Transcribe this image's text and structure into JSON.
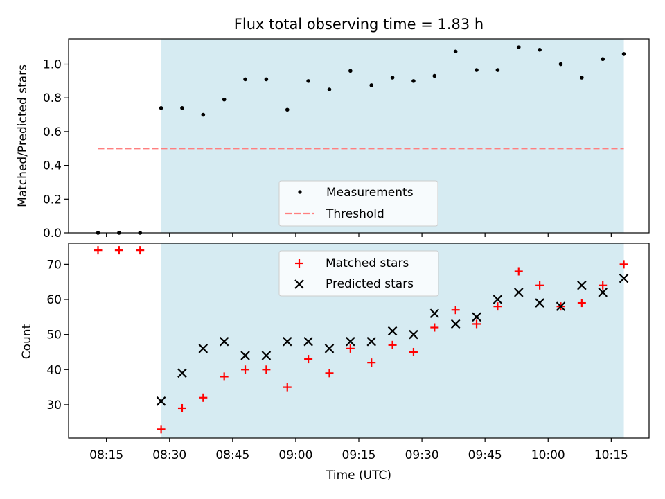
{
  "colors": {
    "shade": "#add8e6",
    "measurement": "#000000",
    "threshold": "#ff7f7f",
    "matched": "#ff0000",
    "predicted": "#000000"
  },
  "chart_data": [
    {
      "type": "scatter",
      "title": "Flux total observing time = 1.83 h",
      "xlabel": "",
      "ylabel": "Matched/Predicted stars",
      "ylim": [
        0,
        1.15
      ],
      "yticks": [
        "0.0",
        "0.2",
        "0.4",
        "0.6",
        "0.8",
        "1.0"
      ],
      "ytick_values": [
        0,
        0.2,
        0.4,
        0.6,
        0.8,
        1.0
      ],
      "shaded_span": [
        "08:28",
        "10:18"
      ],
      "legend_position": "lower center",
      "series": [
        {
          "name": "Measurements",
          "marker": "dot",
          "x": [
            "08:13",
            "08:18",
            "08:23",
            "08:28",
            "08:33",
            "08:38",
            "08:43",
            "08:48",
            "08:53",
            "08:58",
            "09:03",
            "09:08",
            "09:13",
            "09:18",
            "09:23",
            "09:28",
            "09:33",
            "09:38",
            "09:43",
            "09:48",
            "09:53",
            "09:58",
            "10:03",
            "10:08",
            "10:13",
            "10:18"
          ],
          "values": [
            0.0,
            0.0,
            0.0,
            0.74,
            0.74,
            0.7,
            0.79,
            0.91,
            0.91,
            0.73,
            0.9,
            0.85,
            0.96,
            0.875,
            0.92,
            0.9,
            0.93,
            1.075,
            0.965,
            0.965,
            1.1,
            1.085,
            1.0,
            0.92,
            1.03,
            1.06
          ]
        },
        {
          "name": "Threshold",
          "style": "dashed",
          "x": [
            "08:13",
            "10:18"
          ],
          "values": [
            0.5,
            0.5
          ]
        }
      ]
    },
    {
      "type": "scatter",
      "xlabel": "Time (UTC)",
      "ylabel": "Count",
      "ylim": [
        20.5,
        76
      ],
      "yticks": [
        "30",
        "40",
        "50",
        "60",
        "70"
      ],
      "ytick_values": [
        30,
        40,
        50,
        60,
        70
      ],
      "xticks": [
        "08:15",
        "08:30",
        "08:45",
        "09:00",
        "09:15",
        "09:30",
        "09:45",
        "10:00",
        "10:15"
      ],
      "xlim": [
        "08:06",
        "10:24"
      ],
      "shaded_span": [
        "08:28",
        "10:18"
      ],
      "legend_position": "upper center",
      "series": [
        {
          "name": "Matched stars",
          "marker": "plus",
          "x": [
            "08:13",
            "08:18",
            "08:23",
            "08:28",
            "08:33",
            "08:38",
            "08:43",
            "08:48",
            "08:53",
            "08:58",
            "09:03",
            "09:08",
            "09:13",
            "09:18",
            "09:23",
            "09:28",
            "09:33",
            "09:38",
            "09:43",
            "09:48",
            "09:53",
            "09:58",
            "10:03",
            "10:08",
            "10:13",
            "10:18"
          ],
          "values": [
            74,
            74,
            74,
            23,
            29,
            32,
            38,
            40,
            40,
            35,
            43,
            39,
            46,
            42,
            47,
            45,
            52,
            57,
            53,
            58,
            68,
            64,
            58,
            59,
            64,
            70
          ]
        },
        {
          "name": "Predicted stars",
          "marker": "x",
          "x": [
            "08:28",
            "08:33",
            "08:38",
            "08:43",
            "08:48",
            "08:53",
            "08:58",
            "09:03",
            "09:08",
            "09:13",
            "09:18",
            "09:23",
            "09:28",
            "09:33",
            "09:38",
            "09:43",
            "09:48",
            "09:53",
            "09:58",
            "10:03",
            "10:08",
            "10:13",
            "10:18"
          ],
          "values": [
            31,
            39,
            46,
            48,
            44,
            44,
            48,
            48,
            46,
            48,
            48,
            51,
            50,
            56,
            53,
            55,
            60,
            62,
            59,
            58,
            64,
            62,
            66
          ]
        }
      ]
    }
  ]
}
